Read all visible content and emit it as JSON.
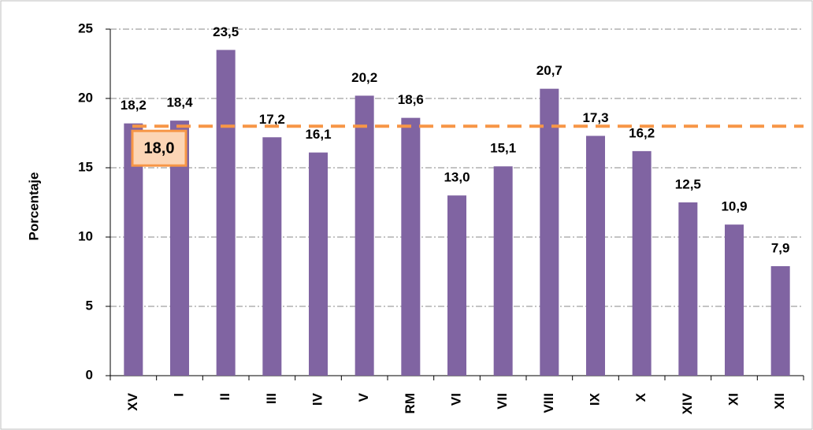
{
  "chart_data": {
    "type": "bar",
    "y_label": "Porcentaje",
    "categories": [
      "XV",
      "I",
      "II",
      "III",
      "IV",
      "V",
      "RM",
      "VI",
      "VII",
      "VIII",
      "IX",
      "X",
      "XIV",
      "XI",
      "XII"
    ],
    "values": [
      18.2,
      18.4,
      23.5,
      17.2,
      16.1,
      20.2,
      18.6,
      13.0,
      15.1,
      20.7,
      17.3,
      16.2,
      12.5,
      10.9,
      7.9
    ],
    "value_labels": [
      "18,2",
      "18,4",
      "23,5",
      "17,2",
      "16,1",
      "20,2",
      "18,6",
      "13,0",
      "15,1",
      "20,7",
      "17,3",
      "16,2",
      "12,5",
      "10,9",
      "7,9"
    ],
    "color": "#8064a2",
    "ylim": [
      0,
      25
    ],
    "yticks": [
      0,
      5,
      10,
      15,
      20,
      25
    ],
    "grid": true,
    "reference_line": {
      "value": 18.0,
      "label": "18,0",
      "color": "#f79646"
    }
  }
}
